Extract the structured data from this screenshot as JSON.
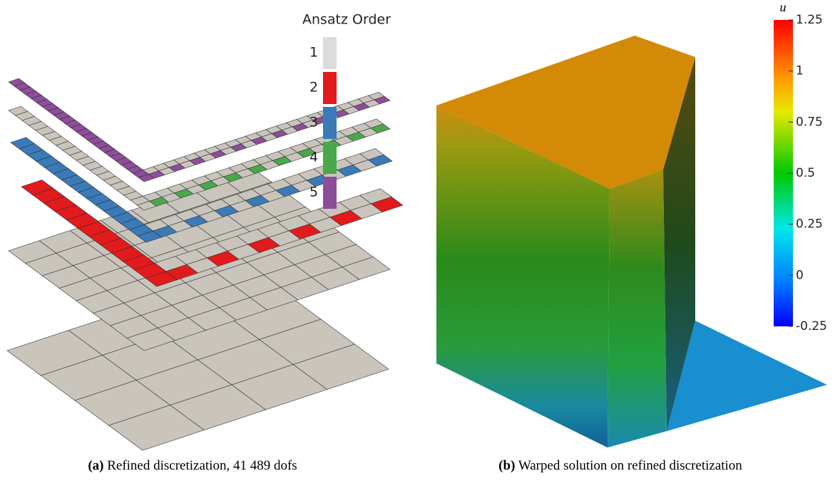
{
  "figure_a": {
    "legend": {
      "title": "Ansatz Order",
      "entries": [
        {
          "label": "1",
          "color": "#dcdcdc"
        },
        {
          "label": "2",
          "color": "#e31a1c"
        },
        {
          "label": "3",
          "color": "#3a7ab8"
        },
        {
          "label": "4",
          "color": "#4aa84a"
        },
        {
          "label": "5",
          "color": "#8e4d9a"
        }
      ]
    },
    "caption": {
      "label": "(a)",
      "text": "Refined discretization, 41 489 dofs"
    }
  },
  "figure_b": {
    "colorbar": {
      "label": "u",
      "range": [
        -0.25,
        1.25
      ],
      "ticks": [
        1.25,
        1,
        0.75,
        0.5,
        0.25,
        0,
        -0.25
      ]
    },
    "caption": {
      "label": "(b)",
      "text": "Warped solution on refined discretization"
    }
  }
}
